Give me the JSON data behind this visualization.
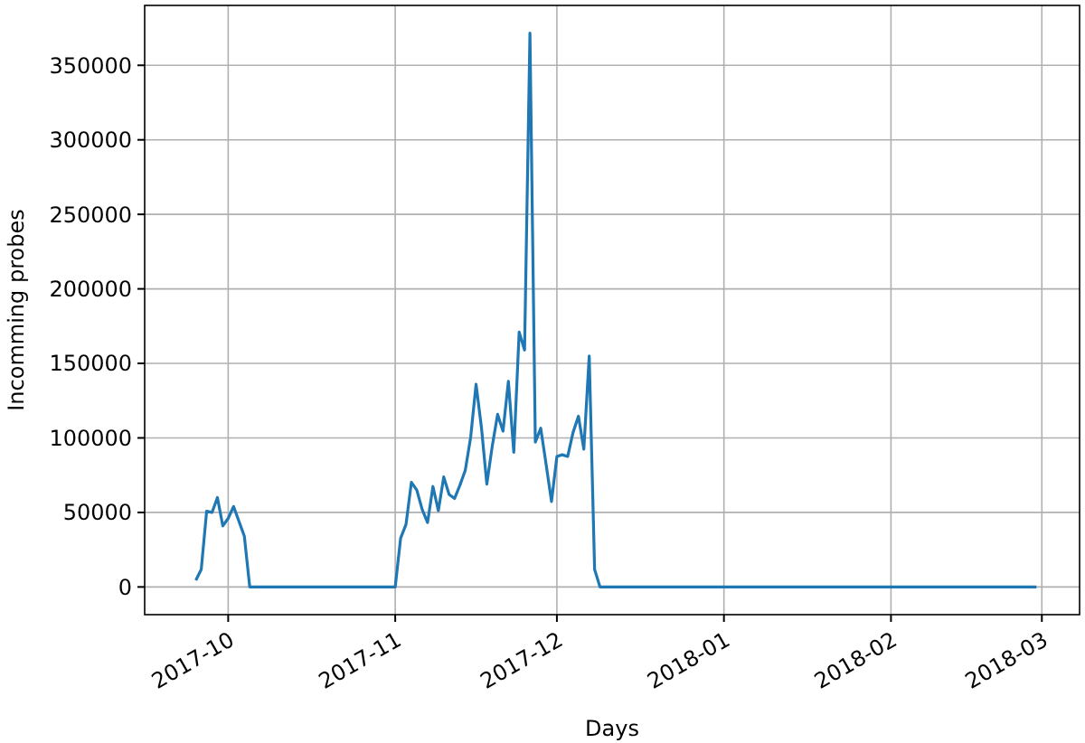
{
  "chart_data": {
    "type": "line",
    "xlabel": "Days",
    "ylabel": "Incomming probes",
    "xlim": [
      "2017-09-15T12:00",
      "2018-03-08"
    ],
    "ylim": [
      -18580,
      390180
    ],
    "xticks": [
      {
        "value": "2017-10-01",
        "label": "2017-10"
      },
      {
        "value": "2017-11-01",
        "label": "2017-11"
      },
      {
        "value": "2017-12-01",
        "label": "2017-12"
      },
      {
        "value": "2018-01-01",
        "label": "2018-01"
      },
      {
        "value": "2018-02-01",
        "label": "2018-02"
      },
      {
        "value": "2018-03-01",
        "label": "2018-03"
      }
    ],
    "yticks": [
      0,
      50000,
      100000,
      150000,
      200000,
      250000,
      300000,
      350000
    ],
    "grid": true,
    "x": [
      "2017-09-25",
      "2017-09-26",
      "2017-09-27",
      "2017-09-28",
      "2017-09-29",
      "2017-09-30",
      "2017-10-01",
      "2017-10-02",
      "2017-10-03",
      "2017-10-04",
      "2017-10-05",
      "2017-11-01",
      "2017-11-02",
      "2017-11-03",
      "2017-11-04",
      "2017-11-05",
      "2017-11-06",
      "2017-11-07",
      "2017-11-08",
      "2017-11-09",
      "2017-11-10",
      "2017-11-11",
      "2017-11-12",
      "2017-11-13",
      "2017-11-14",
      "2017-11-15",
      "2017-11-16",
      "2017-11-17",
      "2017-11-18",
      "2017-11-19",
      "2017-11-20",
      "2017-11-21",
      "2017-11-22",
      "2017-11-23",
      "2017-11-24",
      "2017-11-25",
      "2017-11-26",
      "2017-11-27",
      "2017-11-28",
      "2017-11-29",
      "2017-11-30",
      "2017-12-01",
      "2017-12-02",
      "2017-12-03",
      "2017-12-04",
      "2017-12-05",
      "2017-12-06",
      "2017-12-07",
      "2017-12-08",
      "2017-12-09",
      "2018-02-28"
    ],
    "series": [
      {
        "color": "#1f77b4",
        "values": [
          4500,
          11700,
          50800,
          50000,
          60000,
          41000,
          46000,
          54000,
          44000,
          34000,
          0,
          0,
          32700,
          42000,
          70200,
          65000,
          52000,
          43200,
          67400,
          51200,
          73800,
          62100,
          59300,
          68200,
          78300,
          100500,
          136000,
          107000,
          69000,
          94400,
          115800,
          104500,
          138000,
          90400,
          171000,
          159000,
          371600,
          97200,
          106500,
          82300,
          57300,
          87500,
          88700,
          87500,
          103700,
          114600,
          92400,
          155000,
          11700,
          0,
          0
        ]
      }
    ]
  }
}
